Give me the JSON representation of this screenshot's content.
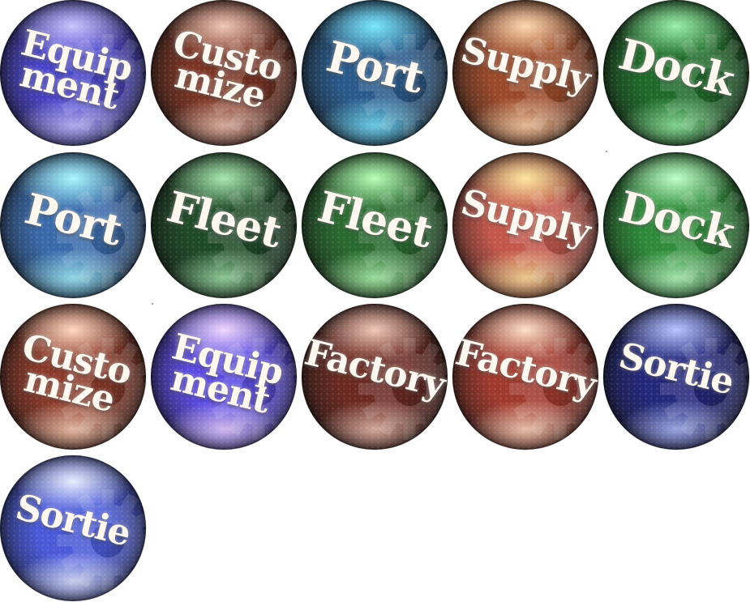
{
  "sprite_sheet": {
    "buttons": [
      {
        "label": "Equip\nment",
        "name": "equipment",
        "color": "#4a44c8",
        "hi": "#c8c4ff",
        "style": "two"
      },
      {
        "label": "Custo\nmize",
        "name": "customize",
        "color": "#7a3424",
        "hi": "#f0c8b8",
        "style": "two"
      },
      {
        "label": "Port",
        "name": "port",
        "color": "#2a5a8a",
        "hi": "#7ae8ff",
        "style": "big"
      },
      {
        "label": "Supply",
        "name": "supply",
        "color": "#9a4a2a",
        "hi": "#ffd8b0",
        "style": "mid"
      },
      {
        "label": "Dock",
        "name": "dock",
        "color": "#1f6a2a",
        "hi": "#9af0a8",
        "style": "big"
      },
      {
        "label": "Port",
        "name": "port-active",
        "color": "#3a6aaa",
        "hi": "#a8f8ff",
        "style": "big"
      },
      {
        "label": "Fleet",
        "name": "fleet",
        "color": "#1f4a28",
        "hi": "#a8e8b0",
        "style": "big"
      },
      {
        "label": "Fleet",
        "name": "fleet-active",
        "color": "#2a6a30",
        "hi": "#b8ffb8",
        "style": "big"
      },
      {
        "label": "Supply",
        "name": "supply-active",
        "color": "#c2574a",
        "hi": "#ffe8a0",
        "style": "mid"
      },
      {
        "label": "Dock",
        "name": "dock-active",
        "color": "#2f8a3a",
        "hi": "#c0ffc8",
        "style": "big"
      },
      {
        "label": "Custo\nmize",
        "name": "customize-active",
        "color": "#8a3a2a",
        "hi": "#ffd8c0",
        "style": "two"
      },
      {
        "label": "Equip\nment",
        "name": "equipment-active",
        "color": "#5a4ae0",
        "hi": "#f0d8ff",
        "style": "two"
      },
      {
        "label": "Factory",
        "name": "factory",
        "color": "#6a2a22",
        "hi": "#f0c8b8",
        "style": "mid"
      },
      {
        "label": "Factory",
        "name": "factory-active",
        "color": "#a03a2e",
        "hi": "#ffe0c8",
        "style": "mid"
      },
      {
        "label": "Sortie",
        "name": "sortie",
        "color": "#24287a",
        "hi": "#b8c4ff",
        "style": "mid"
      },
      {
        "label": "Sortie",
        "name": "sortie-active",
        "color": "#4a5ad8",
        "hi": "#e8eeff",
        "style": "mid"
      }
    ]
  }
}
